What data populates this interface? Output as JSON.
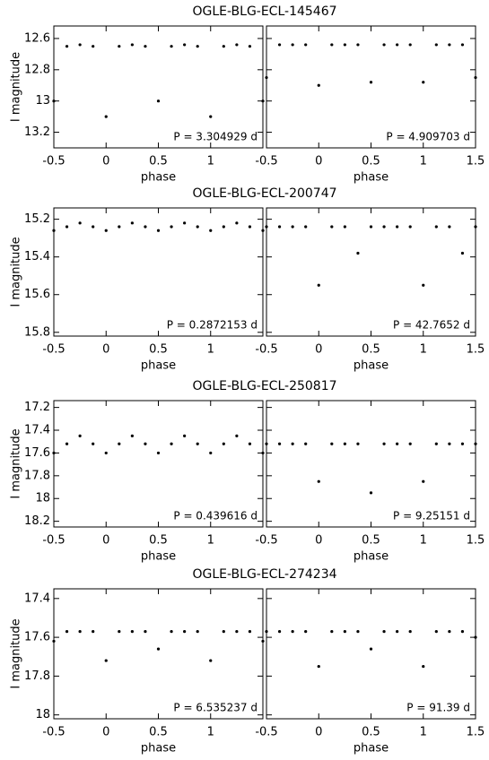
{
  "chart_data": [
    {
      "type": "scatter",
      "title": "OGLE-BLG-ECL-145467",
      "ylabel": "I  magnitude",
      "y_inverted": true,
      "ylim": [
        12.52,
        13.3
      ],
      "yticks": [
        12.6,
        12.8,
        13,
        13.2
      ],
      "panels": [
        {
          "xlabel": "phase",
          "annotation": "P = 3.304929 d",
          "xlim": [
            -0.5,
            1.5
          ],
          "xticks": [
            -0.5,
            0,
            0.5,
            1
          ],
          "x": [
            -0.5,
            -0.375,
            -0.25,
            -0.125,
            0,
            0.125,
            0.25,
            0.375,
            0.5,
            0.625,
            0.75,
            0.875,
            1,
            1.125,
            1.25,
            1.375,
            1.5
          ],
          "values": [
            13.0,
            12.65,
            12.64,
            12.65,
            13.1,
            12.65,
            12.64,
            12.65,
            13.0,
            12.65,
            12.64,
            12.65,
            13.1,
            12.65,
            12.64,
            12.65,
            13.0
          ]
        },
        {
          "xlabel": "phase",
          "annotation": "P = 4.909703 d",
          "xlim": [
            -0.5,
            1.5
          ],
          "xticks": [
            -0.5,
            0,
            0.5,
            1,
            1.5
          ],
          "x": [
            -0.5,
            -0.375,
            -0.25,
            -0.125,
            0,
            0.125,
            0.25,
            0.375,
            0.5,
            0.625,
            0.75,
            0.875,
            1,
            1.125,
            1.25,
            1.375,
            1.5
          ],
          "values": [
            12.85,
            12.64,
            12.64,
            12.64,
            12.9,
            12.64,
            12.64,
            12.64,
            12.88,
            12.64,
            12.64,
            12.64,
            12.88,
            12.64,
            12.64,
            12.64,
            12.85
          ]
        }
      ]
    },
    {
      "type": "scatter",
      "title": "OGLE-BLG-ECL-200747",
      "ylabel": "I  magnitude",
      "y_inverted": true,
      "ylim": [
        15.14,
        15.82
      ],
      "yticks": [
        15.2,
        15.4,
        15.6,
        15.8
      ],
      "panels": [
        {
          "xlabel": "phase",
          "annotation": "P = 0.2872153 d",
          "xlim": [
            -0.5,
            1.5
          ],
          "xticks": [
            -0.5,
            0,
            0.5,
            1
          ],
          "x": [
            -0.5,
            -0.375,
            -0.25,
            -0.125,
            0,
            0.125,
            0.25,
            0.375,
            0.5,
            0.625,
            0.75,
            0.875,
            1,
            1.125,
            1.25,
            1.375,
            1.5
          ],
          "values": [
            15.26,
            15.24,
            15.22,
            15.24,
            15.26,
            15.24,
            15.22,
            15.24,
            15.26,
            15.24,
            15.22,
            15.24,
            15.26,
            15.24,
            15.22,
            15.24,
            15.26
          ]
        },
        {
          "xlabel": "phase",
          "annotation": "P = 42.7652 d",
          "xlim": [
            -0.5,
            1.5
          ],
          "xticks": [
            -0.5,
            0,
            0.5,
            1,
            1.5
          ],
          "x": [
            -0.5,
            -0.375,
            -0.25,
            -0.125,
            0,
            0.125,
            0.25,
            0.375,
            0.5,
            0.625,
            0.75,
            0.875,
            1,
            1.125,
            1.25,
            1.375,
            1.5
          ],
          "values": [
            15.24,
            15.24,
            15.24,
            15.24,
            15.55,
            15.24,
            15.24,
            15.38,
            15.24,
            15.24,
            15.24,
            15.24,
            15.55,
            15.24,
            15.24,
            15.38,
            15.24
          ]
        }
      ]
    },
    {
      "type": "scatter",
      "title": "OGLE-BLG-ECL-250817",
      "ylabel": "I  magnitude",
      "y_inverted": true,
      "ylim": [
        17.14,
        18.25
      ],
      "yticks": [
        17.2,
        17.4,
        17.6,
        17.8,
        18,
        18.2
      ],
      "panels": [
        {
          "xlabel": "phase",
          "annotation": "P = 0.439616 d",
          "xlim": [
            -0.5,
            1.5
          ],
          "xticks": [
            -0.5,
            0,
            0.5,
            1
          ],
          "x": [
            -0.5,
            -0.375,
            -0.25,
            -0.125,
            0,
            0.125,
            0.25,
            0.375,
            0.5,
            0.625,
            0.75,
            0.875,
            1,
            1.125,
            1.25,
            1.375,
            1.5
          ],
          "values": [
            17.6,
            17.52,
            17.45,
            17.52,
            17.6,
            17.52,
            17.45,
            17.52,
            17.6,
            17.52,
            17.45,
            17.52,
            17.6,
            17.52,
            17.45,
            17.52,
            17.6
          ]
        },
        {
          "xlabel": "phase",
          "annotation": "P = 9.25151 d",
          "xlim": [
            -0.5,
            1.5
          ],
          "xticks": [
            -0.5,
            0,
            0.5,
            1,
            1.5
          ],
          "x": [
            -0.5,
            -0.375,
            -0.25,
            -0.125,
            0,
            0.125,
            0.25,
            0.375,
            0.5,
            0.625,
            0.75,
            0.875,
            1,
            1.125,
            1.25,
            1.375,
            1.5
          ],
          "values": [
            17.52,
            17.52,
            17.52,
            17.52,
            17.85,
            17.52,
            17.52,
            17.52,
            17.95,
            17.52,
            17.52,
            17.52,
            17.85,
            17.52,
            17.52,
            17.52,
            17.52
          ]
        }
      ]
    },
    {
      "type": "scatter",
      "title": "OGLE-BLG-ECL-274234",
      "ylabel": "I  magnitude",
      "y_inverted": true,
      "ylim": [
        17.35,
        18.02
      ],
      "yticks": [
        17.4,
        17.6,
        17.8,
        18
      ],
      "panels": [
        {
          "xlabel": "phase",
          "annotation": "P = 6.535237 d",
          "xlim": [
            -0.5,
            1.5
          ],
          "xticks": [
            -0.5,
            0,
            0.5,
            1
          ],
          "x": [
            -0.5,
            -0.375,
            -0.25,
            -0.125,
            0,
            0.125,
            0.25,
            0.375,
            0.5,
            0.625,
            0.75,
            0.875,
            1,
            1.125,
            1.25,
            1.375,
            1.5
          ],
          "values": [
            17.62,
            17.57,
            17.57,
            17.57,
            17.72,
            17.57,
            17.57,
            17.57,
            17.66,
            17.57,
            17.57,
            17.57,
            17.72,
            17.57,
            17.57,
            17.57,
            17.62
          ]
        },
        {
          "xlabel": "phase",
          "annotation": "P = 91.39 d",
          "xlim": [
            -0.5,
            1.5
          ],
          "xticks": [
            -0.5,
            0,
            0.5,
            1,
            1.5
          ],
          "x": [
            -0.5,
            -0.375,
            -0.25,
            -0.125,
            0,
            0.125,
            0.25,
            0.375,
            0.5,
            0.625,
            0.75,
            0.875,
            1,
            1.125,
            1.25,
            1.375,
            1.5
          ],
          "values": [
            17.57,
            17.57,
            17.57,
            17.57,
            17.75,
            17.57,
            17.57,
            17.57,
            17.66,
            17.57,
            17.57,
            17.57,
            17.75,
            17.57,
            17.57,
            17.57,
            17.6
          ]
        }
      ]
    }
  ]
}
